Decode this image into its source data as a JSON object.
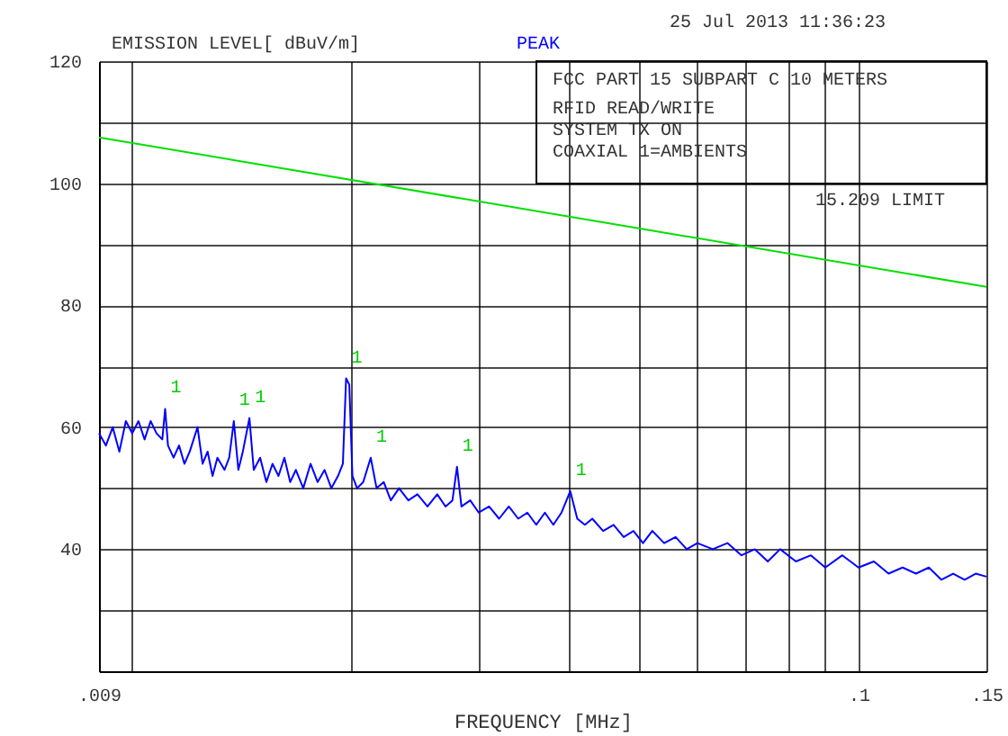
{
  "chart_data": {
    "type": "line",
    "title": "FCC PART 15 SUBPART C 10 METERS",
    "xlabel": "FREQUENCY [MHz]",
    "ylabel": "EMISSION LEVEL[    dBuV/m]",
    "log": "x",
    "grid": true,
    "marker": "none",
    "line_style": "solid",
    "xlim": [
      0.009,
      0.15
    ],
    "ylim": [
      20,
      120
    ],
    "xticks": [
      {
        "value": 0.009,
        "label": ".009"
      },
      {
        "value": 0.01,
        "label": null
      },
      {
        "value": 0.02,
        "label": null
      },
      {
        "value": 0.03,
        "label": null
      },
      {
        "value": 0.04,
        "label": null
      },
      {
        "value": 0.05,
        "label": null
      },
      {
        "value": 0.06,
        "label": null
      },
      {
        "value": 0.07,
        "label": null
      },
      {
        "value": 0.08,
        "label": null
      },
      {
        "value": 0.09,
        "label": null
      },
      {
        "value": 0.1,
        "label": ".1"
      },
      {
        "value": 0.15,
        "label": ".15"
      }
    ],
    "yticks": [
      {
        "value": 20,
        "label": null
      },
      {
        "value": 30,
        "label": null
      },
      40,
      {
        "value": 50,
        "label": null
      },
      60,
      {
        "value": 70,
        "label": null
      },
      80,
      {
        "value": 90,
        "label": null
      },
      100,
      {
        "value": 110,
        "label": null
      },
      120
    ],
    "series": [
      {
        "type": "line",
        "color": "#0000ff",
        "x": [
          0.009,
          0.0092,
          0.0094,
          0.0096,
          0.0098,
          0.01,
          0.0102,
          0.0104,
          0.0106,
          0.0108,
          0.011,
          0.0111,
          0.0112,
          0.0114,
          0.0116,
          0.0118,
          0.012,
          0.0123,
          0.0125,
          0.0127,
          0.0129,
          0.0131,
          0.0134,
          0.0136,
          0.0138,
          0.014,
          0.0142,
          0.0145,
          0.0147,
          0.015,
          0.0153,
          0.0156,
          0.0159,
          0.0162,
          0.0165,
          0.0168,
          0.0172,
          0.0176,
          0.018,
          0.0184,
          0.0188,
          0.0192,
          0.0195,
          0.0197,
          0.0199,
          0.0201,
          0.0204,
          0.0208,
          0.0213,
          0.0217,
          0.0222,
          0.0227,
          0.0233,
          0.024,
          0.0247,
          0.0255,
          0.0263,
          0.027,
          0.0276,
          0.028,
          0.0284,
          0.0292,
          0.03,
          0.031,
          0.032,
          0.033,
          0.034,
          0.035,
          0.036,
          0.037,
          0.038,
          0.039,
          0.0401,
          0.041,
          0.042,
          0.043,
          0.0445,
          0.046,
          0.0475,
          0.049,
          0.0505,
          0.052,
          0.054,
          0.056,
          0.058,
          0.06,
          0.063,
          0.066,
          0.069,
          0.072,
          0.075,
          0.078,
          0.082,
          0.086,
          0.09,
          0.095,
          0.1,
          0.105,
          0.11,
          0.115,
          0.12,
          0.125,
          0.13,
          0.135,
          0.14,
          0.145,
          0.15
        ],
        "values": [
          59,
          57,
          60,
          56,
          61,
          59,
          61,
          58,
          61,
          59,
          58,
          63,
          57,
          55,
          57,
          54,
          56,
          60,
          54,
          56,
          52,
          55,
          53,
          55,
          61,
          53,
          56,
          61.5,
          53,
          55,
          51,
          54,
          52,
          55,
          51,
          53,
          50,
          54,
          51,
          53,
          50,
          52,
          54,
          68,
          67,
          52,
          50,
          51,
          55,
          50,
          51,
          48,
          50,
          48,
          49,
          47,
          49,
          47,
          48,
          53.5,
          47,
          48,
          46,
          47,
          45,
          47,
          45,
          46,
          44,
          46,
          44,
          46,
          49.5,
          45,
          44,
          45,
          43,
          44,
          42,
          43,
          41,
          43,
          41,
          42,
          40,
          41,
          40,
          41,
          39,
          40,
          38,
          40,
          38,
          39,
          37,
          39,
          37,
          38,
          36,
          37,
          36,
          37,
          35,
          36,
          35,
          36,
          35.5
        ]
      },
      {
        "type": "line",
        "color": "#00e000",
        "x": [
          0.009,
          0.15
        ],
        "values": [
          107.5,
          83
        ]
      }
    ],
    "annotations": [
      "RFID READ/WRITE",
      "SYSTEM      TX ON",
      "COAXIAL      1=AMBIENTS",
      "PEAK",
      "25 Jul 2013  11:36:23",
      "15.209 LIMIT",
      {
        "text": "1",
        "x": 0.0111,
        "y": 63
      },
      {
        "text": "1",
        "x": 0.0138,
        "y": 61
      },
      {
        "text": "1",
        "x": 0.0145,
        "y": 61.5
      },
      {
        "text": "1",
        "x": 0.0197,
        "y": 68
      },
      {
        "text": "1",
        "x": 0.0213,
        "y": 55
      },
      {
        "text": "1",
        "x": 0.028,
        "y": 53.5
      },
      {
        "text": "1",
        "x": 0.0401,
        "y": 49.5
      }
    ]
  }
}
